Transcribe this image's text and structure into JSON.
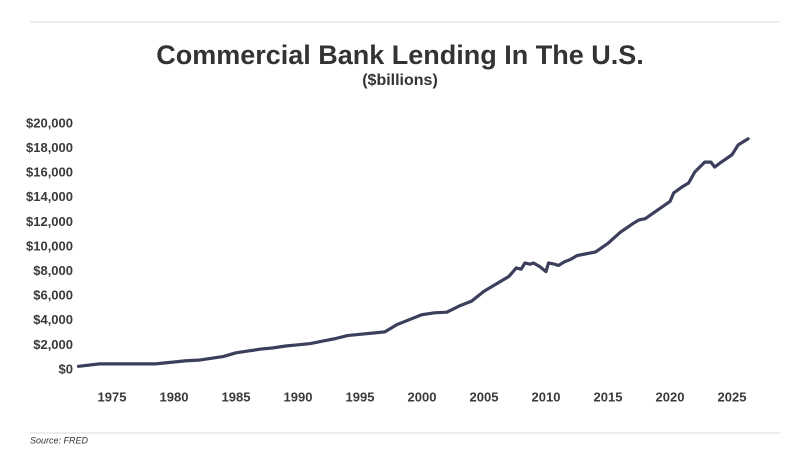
{
  "chart_data": {
    "type": "line",
    "title": "Commercial Bank Lending In The U.S.",
    "subtitle": "($billions)",
    "source": "Source: FRED",
    "color": "#3b3f5c",
    "grid": false,
    "x": [
      1972.3,
      1974,
      1978.5,
      1980,
      1981,
      1982,
      1983,
      1984,
      1985,
      1986,
      1987,
      1988,
      1989,
      1990,
      1991,
      1992,
      1993,
      1994,
      1995,
      1996,
      1997,
      1998,
      1999,
      2000,
      2001,
      2002,
      2003,
      2004,
      2005,
      2006,
      2007,
      2007.6,
      2008,
      2008.3,
      2008.7,
      2009,
      2009.5,
      2010,
      2010.2,
      2010.7,
      2011,
      2011.5,
      2012,
      2012.5,
      2013,
      2014,
      2015,
      2016,
      2017,
      2017.5,
      2018,
      2019,
      2020,
      2020.3,
      2021,
      2021.5,
      2022,
      2022.8,
      2023.3,
      2023.6,
      2024,
      2025,
      2025.5,
      2026.3
    ],
    "values": [
      300,
      500,
      500,
      650,
      750,
      800,
      950,
      1100,
      1400,
      1550,
      1700,
      1800,
      1950,
      2050,
      2150,
      2350,
      2550,
      2800,
      2900,
      3000,
      3100,
      3700,
      4100,
      4500,
      4650,
      4700,
      5200,
      5600,
      6400,
      7000,
      7600,
      8300,
      8200,
      8700,
      8600,
      8700,
      8400,
      8000,
      8700,
      8600,
      8500,
      8800,
      9000,
      9300,
      9400,
      9600,
      10300,
      11200,
      11900,
      12200,
      12300,
      13000,
      13700,
      14400,
      14900,
      15200,
      16100,
      16900,
      16900,
      16500,
      16800,
      17500,
      18300,
      18800
    ],
    "xlim": [
      1972,
      2027
    ],
    "xticks": [
      1975,
      1980,
      1985,
      1990,
      1995,
      2000,
      2005,
      2010,
      2015,
      2020,
      2025
    ],
    "ylim": [
      0,
      20000
    ],
    "yticks": [
      {
        "value": 0,
        "label": "$0"
      },
      {
        "value": 2000,
        "label": "$2,000"
      },
      {
        "value": 4000,
        "label": "$4,000"
      },
      {
        "value": 6000,
        "label": "$6,000"
      },
      {
        "value": 8000,
        "label": "$8,000"
      },
      {
        "value": 10000,
        "label": "$10,000"
      },
      {
        "value": 12000,
        "label": "$12,000"
      },
      {
        "value": 14000,
        "label": "$14,000"
      },
      {
        "value": 16000,
        "label": "$16,000"
      },
      {
        "value": 18000,
        "label": "$18,000"
      },
      {
        "value": 20000,
        "label": "$20,000"
      }
    ]
  }
}
